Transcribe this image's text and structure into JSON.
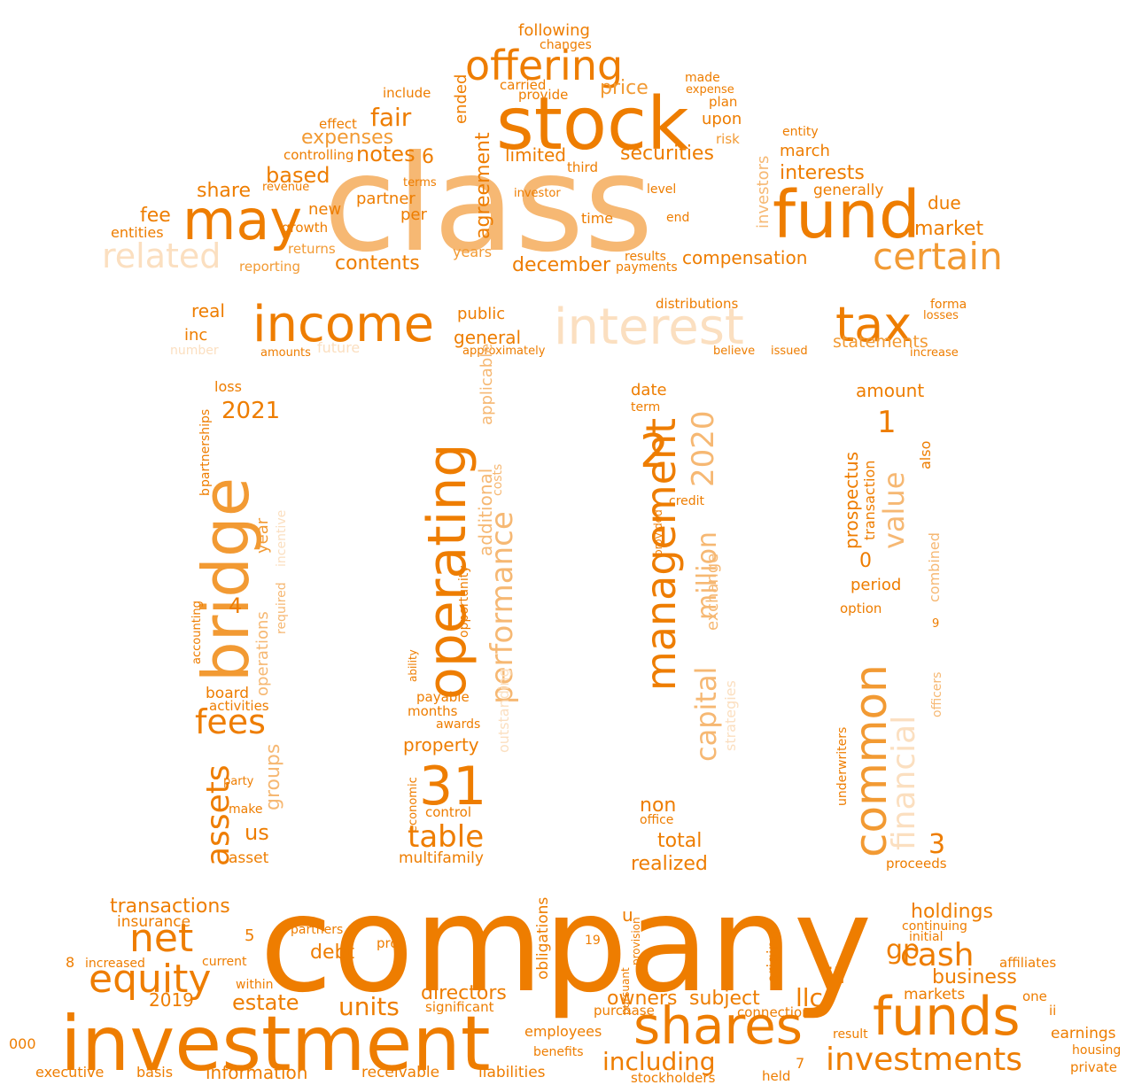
{
  "palette": {
    "dark": "#ee7d00",
    "mid": "#f29a33",
    "light": "#f6b873",
    "pale": "#fbdfc0"
  },
  "words": {
    "class": "class",
    "company": "company",
    "stock": "stock",
    "fund": "fund",
    "may": "may",
    "offering": "offering",
    "income": "income",
    "interest": "interest",
    "tax": "tax",
    "bridge": "bridge",
    "operating": "operating",
    "investment": "investment",
    "funds": "funds",
    "shares": "shares",
    "investments": "investments",
    "certain": "certain",
    "related": "related",
    "limited": "limited",
    "fees": "fees",
    "management": "management",
    "common": "common",
    "financial": "financial",
    "equity": "equity",
    "net": "net",
    "n31": "31",
    "n2": "2",
    "n2020": "2020",
    "performance": "performance",
    "value": "value",
    "assets": "assets",
    "table": "table",
    "capital": "capital",
    "million": "million",
    "cash": "cash",
    "including": "including",
    "units": "units",
    "directors": "directors",
    "holdings": "holdings",
    "business": "business",
    "estate": "estate",
    "owners": "owners",
    "subject": "subject",
    "llc": "llc",
    "fair": "fair",
    "price": "price",
    "expenses": "expenses",
    "notes": "notes",
    "based": "based",
    "share": "share",
    "fee": "fee",
    "entities": "entities",
    "contents": "contents",
    "december": "december",
    "securities": "securities",
    "compensation": "compensation",
    "market": "market",
    "interests": "interests",
    "generally": "generally",
    "march": "march",
    "due": "due",
    "agreement": "agreement",
    "investors": "investors",
    "statements": "statements",
    "general": "general",
    "public": "public",
    "real": "real",
    "inc": "inc",
    "future": "future",
    "approximately": "approximately",
    "n2021": "2021",
    "year": "year",
    "operations": "operations",
    "groups": "groups",
    "us": "us",
    "asset": "asset",
    "board": "board",
    "activities": "activities",
    "property": "property",
    "multifamily": "multifamily",
    "economic": "economic",
    "total": "total",
    "realized": "realized",
    "non": "non",
    "office": "office",
    "date": "date",
    "term": "term",
    "exchange": "exchange",
    "strategies": "strategies",
    "amount": "amount",
    "prospectus": "prospectus",
    "period": "period",
    "option": "option",
    "combined": "combined",
    "also": "also",
    "transaction": "transaction",
    "n3": "3",
    "n0": "0",
    "n1": "1",
    "n4": "4",
    "proceeds": "proceeds",
    "underwriters": "underwriters",
    "officers": "officers",
    "transactions": "transactions",
    "insurance": "insurance",
    "debt": "debt",
    "partners": "partners",
    "n2019": "2019",
    "information": "information",
    "executive": "executive",
    "basis": "basis",
    "receivable": "receivable",
    "liabilities": "liabilities",
    "stockholders": "stockholders",
    "employees": "employees",
    "significant": "significant",
    "purchase": "purchase",
    "connection": "connection",
    "held": "held",
    "markets": "markets",
    "gp": "gp",
    "iii": "iii",
    "earnings": "earnings",
    "housing": "housing",
    "private": "private",
    "affiliates": "affiliates",
    "continuing": "continuing",
    "initial": "initial",
    "result": "result",
    "original": "original",
    "n000": "000",
    "n8": "8",
    "n5": "5",
    "n7": "7",
    "u": "u",
    "current": "current",
    "increased": "increased",
    "within": "within",
    "returns": "returns",
    "reporting": "reporting",
    "distributions": "distributions",
    "losses": "losses",
    "forma": "forma",
    "increase": "increase",
    "believe": "believe",
    "issued": "issued",
    "number": "number",
    "amounts": "amounts",
    "following": "following",
    "provide": "provide",
    "include": "include",
    "carried": "carried",
    "ended": "ended",
    "effect": "effect",
    "controlling": "controlling",
    "plan": "plan",
    "made": "made",
    "expense": "expense",
    "upon": "upon",
    "risk": "risk",
    "entity": "entity",
    "level": "level",
    "end": "end",
    "new": "new",
    "growth": "growth",
    "per": "per",
    "time": "time",
    "years": "years",
    "payments": "payments",
    "results": "results",
    "partner": "partner",
    "third": "third",
    "investor": "investor",
    "terms": "terms",
    "revenue": "revenue",
    "n6": "6",
    "changes": "changes",
    "additional": "additional",
    "applicable": "applicable",
    "opportunity": "opportunity",
    "outstanding": "outstanding",
    "costs": "costs",
    "months": "months",
    "payable": "payable",
    "awards": "awards",
    "control": "control",
    "loss": "loss",
    "partnerships": "partnerships",
    "b": "b",
    "accounting": "accounting",
    "make": "make",
    "party": "party",
    "incentive": "incentive",
    "required": "required",
    "credit": "credit",
    "provided": "provided",
    "ability": "ability",
    "pro": "pro",
    "pursuant": "pursuant",
    "provision": "provision",
    "benefits": "benefits",
    "obligations": "obligations",
    "one": "one",
    "ii": "ii",
    "n19": "19",
    "n9": "9"
  }
}
